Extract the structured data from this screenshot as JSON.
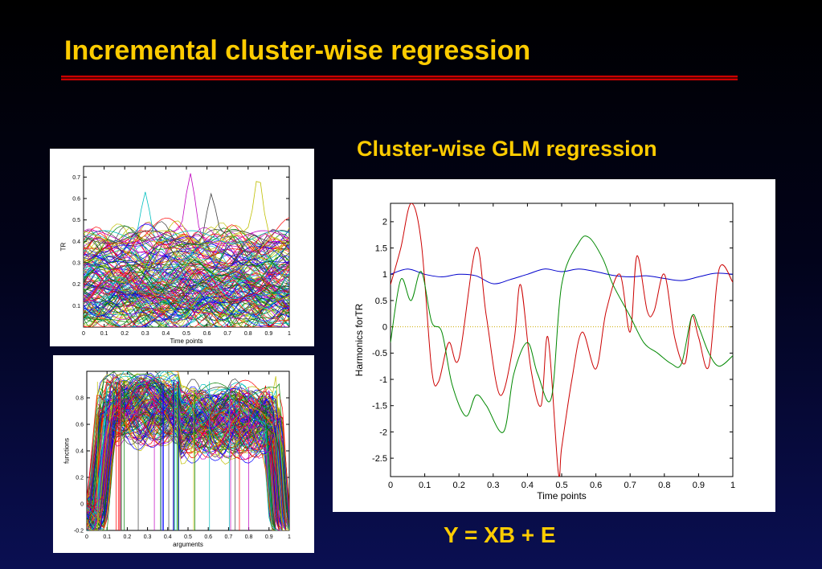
{
  "slide": {
    "title": "Incremental cluster-wise regression",
    "subtitle": "Cluster-wise GLM regression",
    "equation": "Y = XB + E"
  },
  "chart_data": [
    {
      "type": "line",
      "title": "",
      "xlabel": "Time points",
      "ylabel": "TR",
      "xlim": [
        0,
        1
      ],
      "ylim": [
        0,
        0.75
      ],
      "xticks": [
        "0",
        "0.1",
        "0.2",
        "0.3",
        "0.4",
        "0.5",
        "0.6",
        "0.7",
        "0.8",
        "0.9",
        "1"
      ],
      "yticks": [
        "0.1",
        "0.2",
        "0.3",
        "0.4",
        "0.5",
        "0.6",
        "0.7"
      ],
      "grid": false,
      "legend": "none"
    },
    {
      "type": "line",
      "title": "",
      "xlabel": "arguments",
      "ylabel": "functions",
      "xlim": [
        0,
        1
      ],
      "ylim": [
        -0.2,
        1.0
      ],
      "xticks": [
        "0",
        "0.1",
        "0.2",
        "0.3",
        "0.4",
        "0.5",
        "0.6",
        "0.7",
        "0.8",
        "0.9",
        "1"
      ],
      "yticks": [
        "-0.2",
        "0",
        "0.2",
        "0.4",
        "0.6",
        "0.8"
      ],
      "grid": false,
      "legend": "none"
    },
    {
      "type": "line",
      "title": "",
      "xlabel": "Time points",
      "ylabel": "Harmonics forTR",
      "xlim": [
        0,
        1
      ],
      "ylim": [
        -2.85,
        2.35
      ],
      "xticks": [
        "0",
        "0.1",
        "0.2",
        "0.3",
        "0.4",
        "0.5",
        "0.6",
        "0.7",
        "0.8",
        "0.9",
        "1"
      ],
      "yticks": [
        "-2.5",
        "-2",
        "-1.5",
        "-1",
        "-0.5",
        "0",
        "0.5",
        "1",
        "1.5",
        "2"
      ],
      "grid": false,
      "legend": "none",
      "series": [
        {
          "color": "#0000cc",
          "x": [
            0,
            0.05,
            0.1,
            0.15,
            0.2,
            0.25,
            0.3,
            0.35,
            0.4,
            0.45,
            0.5,
            0.55,
            0.6,
            0.65,
            0.7,
            0.75,
            0.8,
            0.85,
            0.9,
            0.95,
            1.0
          ],
          "values": [
            1.0,
            1.1,
            1.0,
            0.95,
            1.0,
            0.97,
            0.82,
            0.9,
            1.0,
            1.1,
            1.05,
            1.1,
            1.05,
            0.98,
            0.95,
            0.97,
            0.92,
            0.88,
            0.95,
            1.02,
            1.0
          ]
        },
        {
          "color": "#cc0000",
          "x": [
            0,
            0.03,
            0.06,
            0.09,
            0.12,
            0.14,
            0.17,
            0.2,
            0.25,
            0.28,
            0.32,
            0.36,
            0.38,
            0.41,
            0.44,
            0.46,
            0.49,
            0.5,
            0.53,
            0.56,
            0.6,
            0.63,
            0.67,
            0.7,
            0.72,
            0.75,
            0.77,
            0.8,
            0.83,
            0.86,
            0.88,
            0.9,
            0.93,
            0.96,
            1.0
          ],
          "values": [
            0.8,
            1.5,
            2.35,
            1.6,
            -0.8,
            -1.05,
            -0.3,
            -0.6,
            1.5,
            0.2,
            -1.3,
            -0.3,
            0.8,
            -0.8,
            -1.5,
            -0.2,
            -2.75,
            -2.3,
            -1.0,
            -0.1,
            -0.8,
            0.3,
            1.0,
            -0.1,
            1.35,
            0.3,
            0.3,
            1.0,
            -0.2,
            -0.7,
            0.2,
            -0.2,
            -0.75,
            1.1,
            0.85
          ]
        },
        {
          "color": "#008800",
          "x": [
            0,
            0.03,
            0.06,
            0.09,
            0.12,
            0.15,
            0.18,
            0.22,
            0.25,
            0.28,
            0.33,
            0.36,
            0.4,
            0.43,
            0.47,
            0.5,
            0.55,
            0.58,
            0.62,
            0.65,
            0.7,
            0.74,
            0.78,
            0.82,
            0.85,
            0.88,
            0.9,
            0.93,
            0.96,
            1.0
          ],
          "values": [
            -0.3,
            0.9,
            0.5,
            1.05,
            0.1,
            -0.1,
            -1.1,
            -1.7,
            -1.3,
            -1.5,
            -2.0,
            -0.9,
            -0.3,
            -0.9,
            -1.35,
            0.8,
            1.6,
            1.7,
            1.3,
            0.8,
            0.2,
            -0.3,
            -0.5,
            -0.7,
            -0.7,
            0.2,
            0.0,
            -0.5,
            -0.75,
            -0.55
          ]
        }
      ]
    }
  ]
}
